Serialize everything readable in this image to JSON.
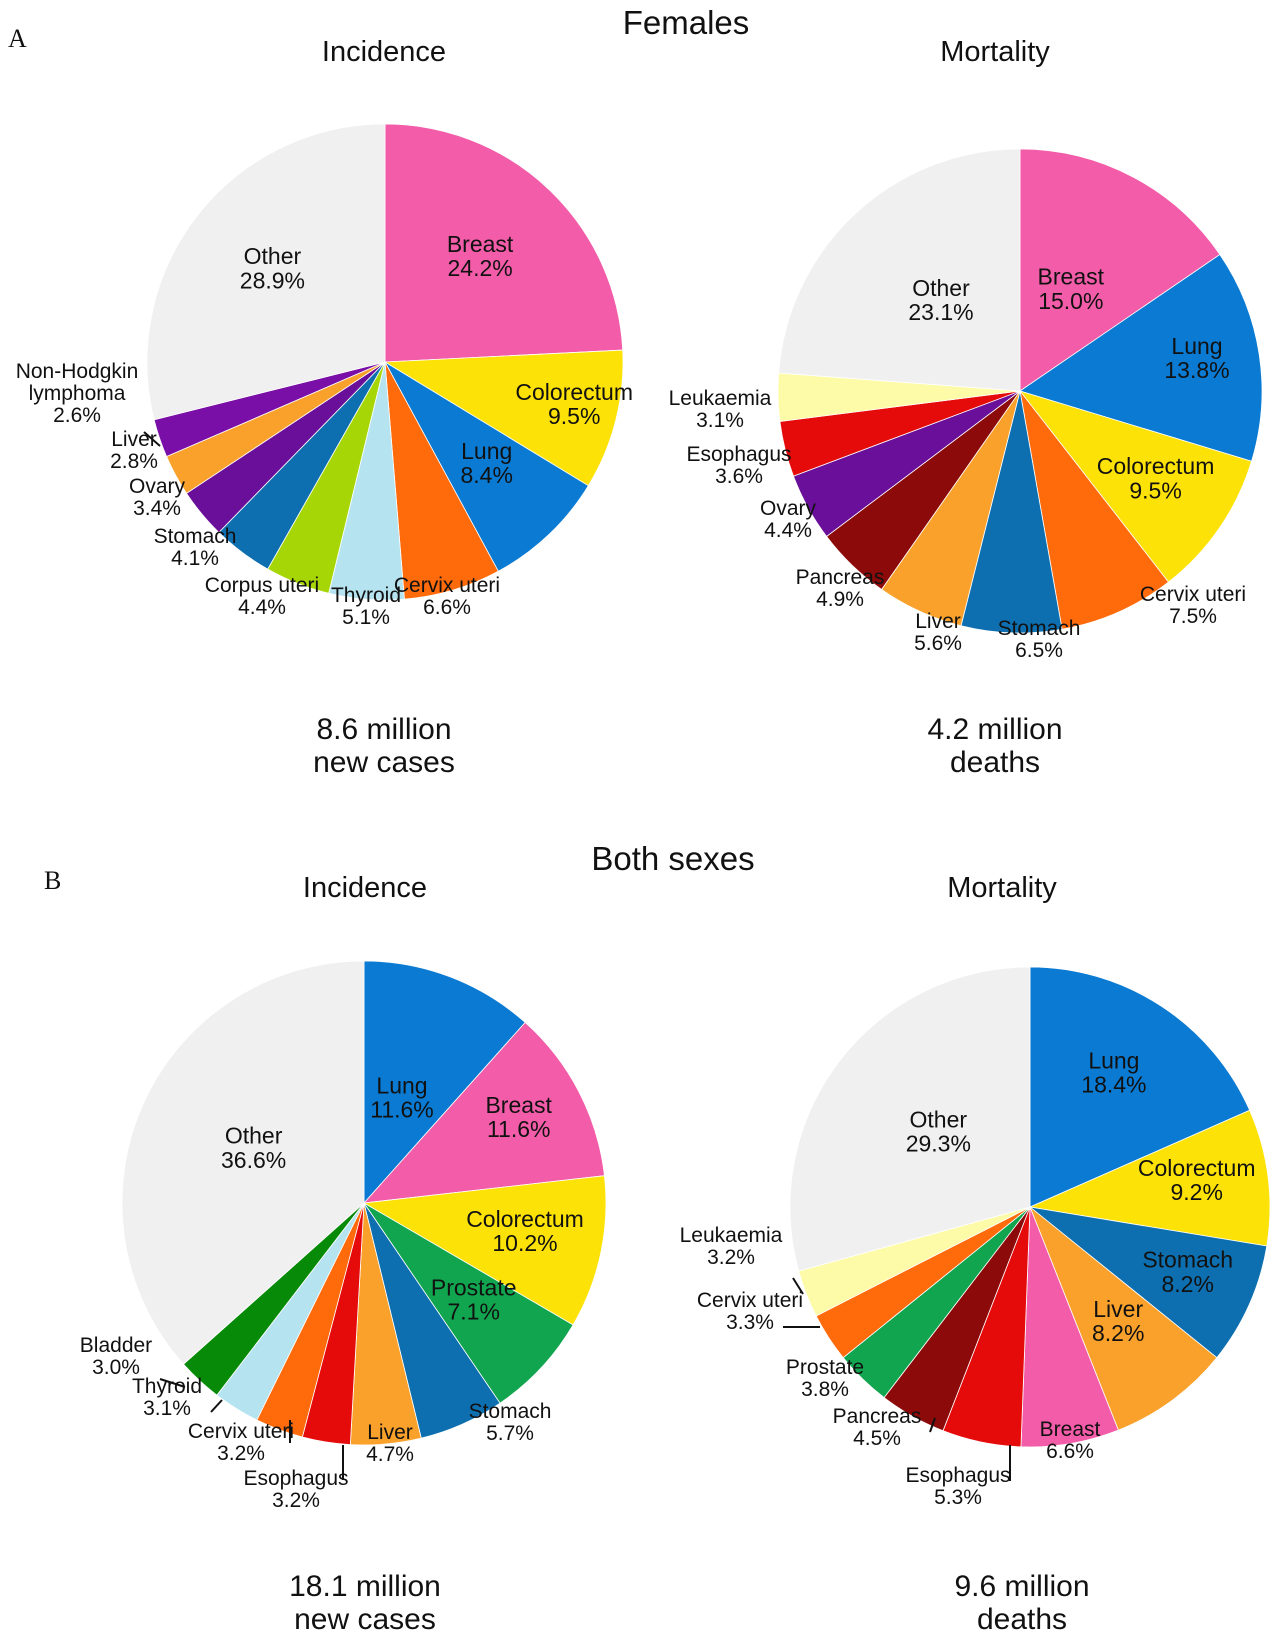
{
  "panels": {
    "a": {
      "letter": "A",
      "title": "Females"
    },
    "b": {
      "letter": "B",
      "title": "Both sexes"
    }
  },
  "chart_data": [
    {
      "type": "pie",
      "title": "Incidence",
      "footer": [
        "8.6 million",
        "new cases"
      ],
      "slices": [
        {
          "label": "Breast",
          "pct": "24.2%",
          "value": 24.2,
          "color": "#f25ca8"
        },
        {
          "label": "Colorectum",
          "pct": "9.5%",
          "value": 9.5,
          "color": "#fde208"
        },
        {
          "label": "Lung",
          "pct": "8.4%",
          "value": 8.4,
          "color": "#0a7ad3"
        },
        {
          "label": "Cervix uteri",
          "pct": "6.6%",
          "value": 6.6,
          "color": "#ff6a0b"
        },
        {
          "label": "Thyroid",
          "pct": "5.1%",
          "value": 5.1,
          "color": "#b5e3f0"
        },
        {
          "label": "Corpus uteri",
          "pct": "4.4%",
          "value": 4.4,
          "color": "#a6d606"
        },
        {
          "label": "Stomach",
          "pct": "4.1%",
          "value": 4.1,
          "color": "#0e6fb0"
        },
        {
          "label": "Ovary",
          "pct": "3.4%",
          "value": 3.4,
          "color": "#6a0f9a"
        },
        {
          "label": "Liver",
          "pct": "2.8%",
          "value": 2.8,
          "color": "#f9a12a"
        },
        {
          "label": "Non-Hodgkin lymphoma",
          "pct": "2.6%",
          "value": 2.6,
          "color": "#7a0fa8"
        },
        {
          "label": "Other",
          "pct": "28.9%",
          "value": 28.9,
          "color": "#f0f0f0"
        }
      ]
    },
    {
      "type": "pie",
      "title": "Mortality",
      "footer": [
        "4.2 million",
        "deaths"
      ],
      "slices": [
        {
          "label": "Breast",
          "pct": "15.0%",
          "value": 15.0,
          "color": "#f25ca8"
        },
        {
          "label": "Lung",
          "pct": "13.8%",
          "value": 13.8,
          "color": "#0a7ad3"
        },
        {
          "label": "Colorectum",
          "pct": "9.5%",
          "value": 9.5,
          "color": "#fde208"
        },
        {
          "label": "Cervix uteri",
          "pct": "7.5%",
          "value": 7.5,
          "color": "#ff6a0b"
        },
        {
          "label": "Stomach",
          "pct": "6.5%",
          "value": 6.5,
          "color": "#0e6fb0"
        },
        {
          "label": "Liver",
          "pct": "5.6%",
          "value": 5.6,
          "color": "#f9a12a"
        },
        {
          "label": "Pancreas",
          "pct": "4.9%",
          "value": 4.9,
          "color": "#8c0a0a"
        },
        {
          "label": "Ovary",
          "pct": "4.4%",
          "value": 4.4,
          "color": "#6a0f9a"
        },
        {
          "label": "Esophagus",
          "pct": "3.6%",
          "value": 3.6,
          "color": "#e60b0b"
        },
        {
          "label": "Leukaemia",
          "pct": "3.1%",
          "value": 3.1,
          "color": "#fdfba8"
        },
        {
          "label": "Other",
          "pct": "23.1%",
          "value": 23.1,
          "color": "#f0f0f0"
        }
      ]
    },
    {
      "type": "pie",
      "title": "Incidence",
      "footer": [
        "18.1 million",
        "new cases"
      ],
      "slices": [
        {
          "label": "Lung",
          "pct": "11.6%",
          "value": 11.6,
          "color": "#0a7ad3"
        },
        {
          "label": "Breast",
          "pct": "11.6%",
          "value": 11.6,
          "color": "#f25ca8"
        },
        {
          "label": "Colorectum",
          "pct": "10.2%",
          "value": 10.2,
          "color": "#fde208"
        },
        {
          "label": "Prostate",
          "pct": "7.1%",
          "value": 7.1,
          "color": "#12a54f"
        },
        {
          "label": "Stomach",
          "pct": "5.7%",
          "value": 5.7,
          "color": "#0e6fb0"
        },
        {
          "label": "Liver",
          "pct": "4.7%",
          "value": 4.7,
          "color": "#f9a12a"
        },
        {
          "label": "Esophagus",
          "pct": "3.2%",
          "value": 3.2,
          "color": "#e60b0b"
        },
        {
          "label": "Cervix uteri",
          "pct": "3.2%",
          "value": 3.2,
          "color": "#ff6a0b"
        },
        {
          "label": "Thyroid",
          "pct": "3.1%",
          "value": 3.1,
          "color": "#b5e3f0"
        },
        {
          "label": "Bladder",
          "pct": "3.0%",
          "value": 3.0,
          "color": "#078a07"
        },
        {
          "label": "Other",
          "pct": "36.6%",
          "value": 36.6,
          "color": "#f0f0f0"
        }
      ]
    },
    {
      "type": "pie",
      "title": "Mortality",
      "footer": [
        "9.6 million",
        "deaths"
      ],
      "slices": [
        {
          "label": "Lung",
          "pct": "18.4%",
          "value": 18.4,
          "color": "#0a7ad3"
        },
        {
          "label": "Colorectum",
          "pct": "9.2%",
          "value": 9.2,
          "color": "#fde208"
        },
        {
          "label": "Stomach",
          "pct": "8.2%",
          "value": 8.2,
          "color": "#0e6fb0"
        },
        {
          "label": "Liver",
          "pct": "8.2%",
          "value": 8.2,
          "color": "#f9a12a"
        },
        {
          "label": "Breast",
          "pct": "6.6%",
          "value": 6.6,
          "color": "#f25ca8"
        },
        {
          "label": "Esophagus",
          "pct": "5.3%",
          "value": 5.3,
          "color": "#e60b0b"
        },
        {
          "label": "Pancreas",
          "pct": "4.5%",
          "value": 4.5,
          "color": "#8c0a0a"
        },
        {
          "label": "Prostate",
          "pct": "3.8%",
          "value": 3.8,
          "color": "#12a54f"
        },
        {
          "label": "Cervix uteri",
          "pct": "3.3%",
          "value": 3.3,
          "color": "#ff6a0b"
        },
        {
          "label": "Leukaemia",
          "pct": "3.2%",
          "value": 3.2,
          "color": "#fdfba8"
        },
        {
          "label": "Other",
          "pct": "29.3%",
          "value": 29.3,
          "color": "#f0f0f0"
        }
      ]
    }
  ]
}
